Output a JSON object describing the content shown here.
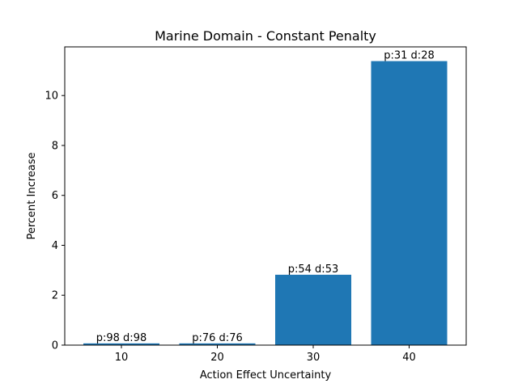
{
  "chart_data": {
    "type": "bar",
    "title": "Marine Domain - Constant Penalty",
    "xlabel": "Action Effect Uncertainty",
    "ylabel": "Percent Increase",
    "categories": [
      "10",
      "20",
      "30",
      "40"
    ],
    "values": [
      0.07,
      0.07,
      2.82,
      11.38
    ],
    "bar_labels": [
      "p:98 d:98",
      "p:76 d:76",
      "p:54 d:53",
      "p:31 d:28"
    ],
    "bar_color": "#1f77b4",
    "ylim": [
      0,
      11.95
    ],
    "yticks": [
      0,
      2,
      4,
      6,
      8,
      10
    ],
    "grid": false,
    "legend": "none"
  }
}
